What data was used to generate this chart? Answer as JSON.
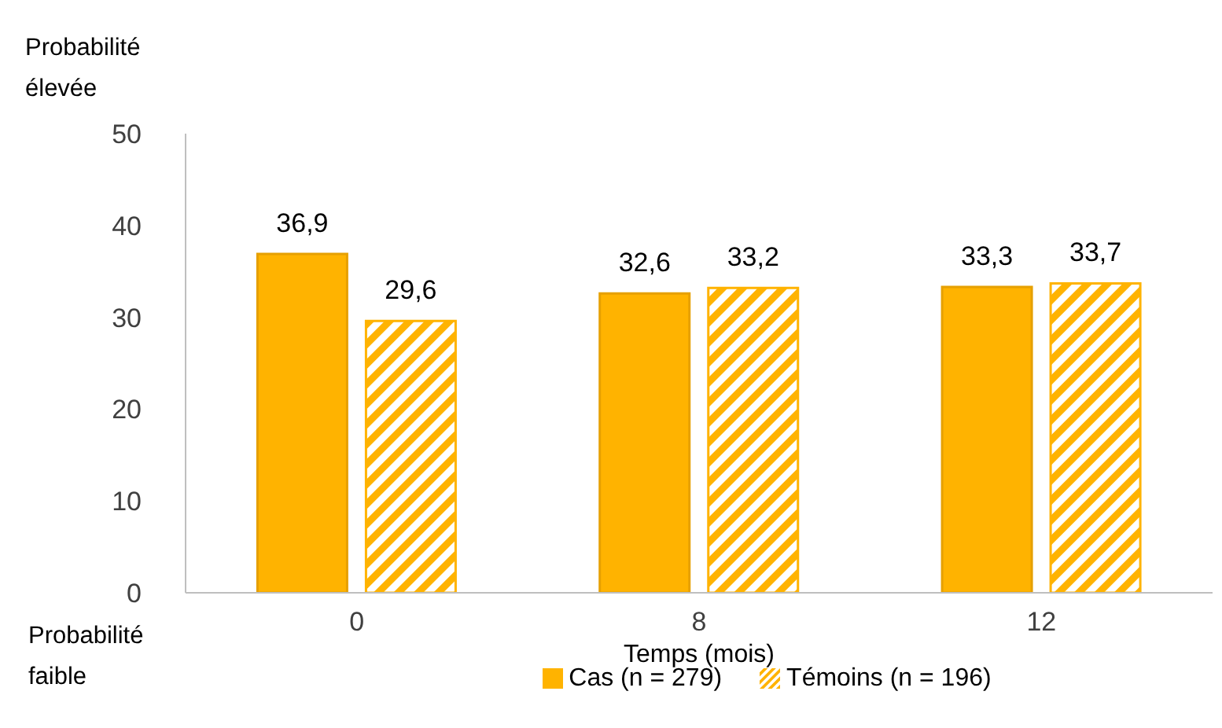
{
  "chart_data": {
    "type": "bar",
    "xlabel": "Temps (mois)",
    "categories": [
      "0",
      "8",
      "12"
    ],
    "series": [
      {
        "name": "Cas (n = 279)",
        "color": "#ffb300",
        "values": [
          36.9,
          32.6,
          33.3
        ],
        "value_labels": [
          "36,9",
          "32,6",
          "33,3"
        ]
      },
      {
        "name": "Témoins (n = 196)",
        "color": "#ffb300",
        "values": [
          29.6,
          33.2,
          33.7
        ],
        "value_labels": [
          "29,6",
          "33,2",
          "33,7"
        ]
      }
    ],
    "ylim": [
      0,
      50
    ],
    "yticks": [
      0,
      10,
      20,
      30,
      40,
      50
    ],
    "grid": false,
    "legend": "bottom",
    "annotations": [
      "Probabilité élevée",
      "Probabilité faible"
    ]
  }
}
